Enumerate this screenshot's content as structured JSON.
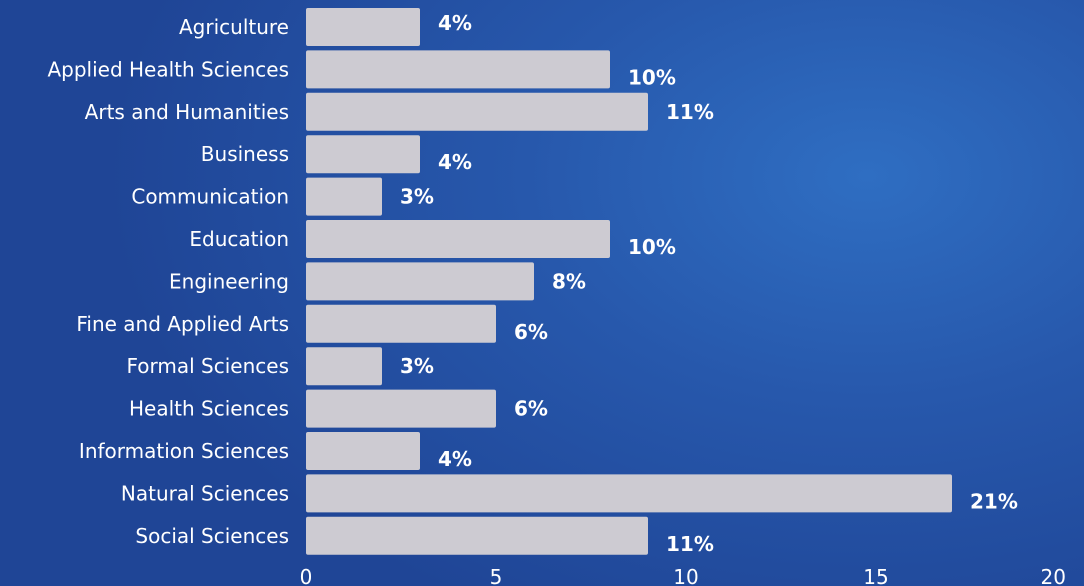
{
  "chart_data": {
    "type": "bar",
    "orientation": "horizontal",
    "categories": [
      "Agriculture",
      "Applied Health Sciences",
      "Arts and Humanities",
      "Business",
      "Communication",
      "Education",
      "Engineering",
      "Fine and Applied Arts",
      "Formal Sciences",
      "Health Sciences",
      "Information Sciences",
      "Natural Sciences",
      "Social Sciences"
    ],
    "values": [
      3,
      8,
      9,
      3,
      2,
      8,
      6,
      5,
      2,
      5,
      3,
      17,
      9
    ],
    "data_labels": [
      "4%",
      "10%",
      "11%",
      "4%",
      "3%",
      "10%",
      "8%",
      "6%",
      "3%",
      "6%",
      "4%",
      "21%",
      "11%"
    ],
    "xlim": [
      0,
      20
    ],
    "xticks": [
      "0",
      "5",
      "10",
      "15",
      "20"
    ],
    "title": "",
    "xlabel": "",
    "ylabel": "",
    "grid": false,
    "colors": {
      "bar": "#cdcbd2",
      "background": "#2758ac",
      "text": "#ffffff"
    }
  }
}
